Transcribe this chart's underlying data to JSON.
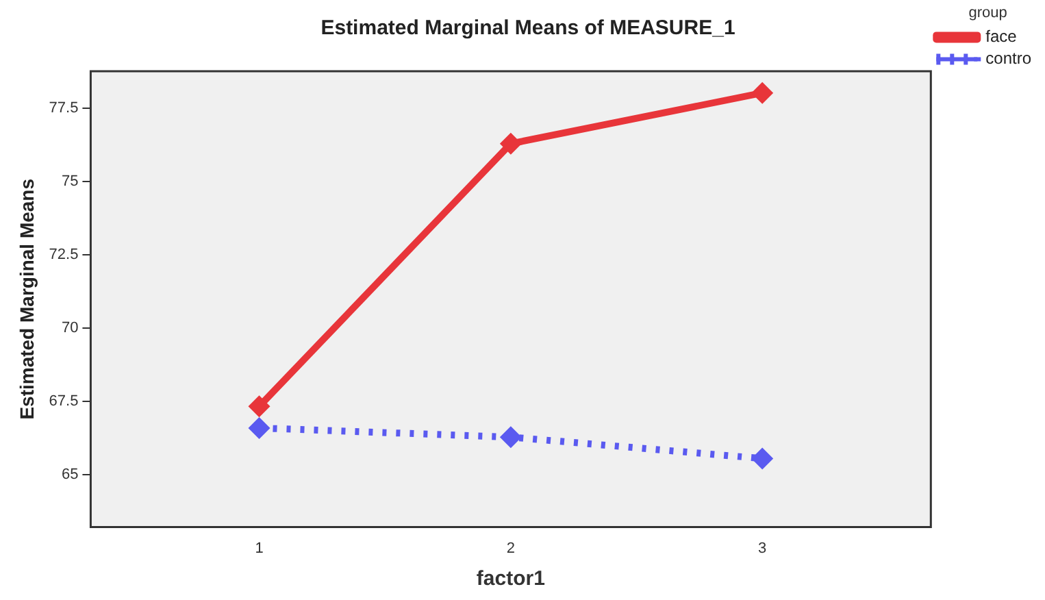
{
  "chart_data": {
    "type": "line",
    "title": "Estimated Marginal Means of MEASURE_1",
    "xlabel": "factor1",
    "ylabel": "Estimated Marginal Means",
    "legend_title": "group",
    "x": [
      1,
      2,
      3
    ],
    "xlim": [
      0.33,
      3.67
    ],
    "xticks": [
      1,
      2,
      3
    ],
    "ylim": [
      63.2,
      78.75
    ],
    "yticks": [
      65,
      67.5,
      70,
      72.5,
      75,
      77.5
    ],
    "series": [
      {
        "name": "face",
        "color": "#e8353a",
        "values": [
          67.32,
          76.28,
          78.01
        ],
        "line_style": "solid"
      },
      {
        "name": "contro",
        "color": "#5a5af0",
        "values": [
          66.58,
          66.27,
          65.54
        ],
        "line_style": "dotted"
      }
    ],
    "grid": false,
    "legend": "top right",
    "marker": "diamond"
  }
}
